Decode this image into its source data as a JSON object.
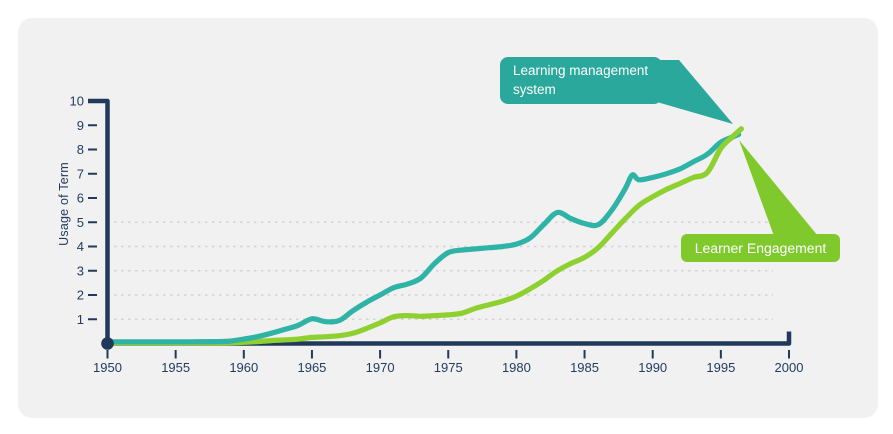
{
  "card": {
    "background": "#f1f1f2"
  },
  "colors": {
    "axis": "#21395b",
    "tick_label": "#223c60",
    "gridline": "#d2d3d6",
    "lms_line": "#2eb3a6",
    "lms_callout": "#2aa89b",
    "engagement_line": "#8ed02f",
    "engagement_callout": "#80c92d",
    "callout_text": "#ffffff"
  },
  "chart_data": {
    "type": "line",
    "title": "",
    "xlabel": "",
    "ylabel": "Usage of Term",
    "xlim": [
      1950,
      2000
    ],
    "ylim": [
      0,
      10
    ],
    "x_ticks": [
      1950,
      1955,
      1960,
      1965,
      1970,
      1975,
      1980,
      1985,
      1990,
      1995,
      2000
    ],
    "y_ticks": [
      1,
      2,
      3,
      4,
      5,
      6,
      7,
      8,
      9,
      10
    ],
    "gridlines_y": [
      1,
      2,
      3,
      4,
      5
    ],
    "grid_style": "dashed",
    "legend_position": "callout-labels-on-chart",
    "series": [
      {
        "name": "Learning management system",
        "color": "#2eb3a6",
        "points": [
          [
            1950,
            0.07
          ],
          [
            1952,
            0.07
          ],
          [
            1954,
            0.07
          ],
          [
            1956,
            0.07
          ],
          [
            1958,
            0.08
          ],
          [
            1959,
            0.1
          ],
          [
            1960,
            0.18
          ],
          [
            1961,
            0.28
          ],
          [
            1962,
            0.42
          ],
          [
            1963,
            0.58
          ],
          [
            1964,
            0.75
          ],
          [
            1965,
            1.02
          ],
          [
            1966,
            0.9
          ],
          [
            1967,
            0.95
          ],
          [
            1968,
            1.35
          ],
          [
            1969,
            1.7
          ],
          [
            1970,
            2.0
          ],
          [
            1971,
            2.3
          ],
          [
            1972,
            2.45
          ],
          [
            1973,
            2.7
          ],
          [
            1974,
            3.3
          ],
          [
            1975,
            3.75
          ],
          [
            1976,
            3.85
          ],
          [
            1977,
            3.9
          ],
          [
            1978,
            3.95
          ],
          [
            1979,
            4.0
          ],
          [
            1980,
            4.1
          ],
          [
            1981,
            4.35
          ],
          [
            1982,
            4.9
          ],
          [
            1983,
            5.4
          ],
          [
            1984,
            5.15
          ],
          [
            1985,
            4.95
          ],
          [
            1986,
            4.9
          ],
          [
            1987,
            5.5
          ],
          [
            1988,
            6.4
          ],
          [
            1988.5,
            6.95
          ],
          [
            1989,
            6.75
          ],
          [
            1990,
            6.85
          ],
          [
            1991,
            7.0
          ],
          [
            1992,
            7.2
          ],
          [
            1993,
            7.5
          ],
          [
            1994,
            7.8
          ],
          [
            1995,
            8.3
          ],
          [
            1996,
            8.55
          ],
          [
            1996.3,
            8.62
          ]
        ]
      },
      {
        "name": "Learner Engagement",
        "color": "#8ed02f",
        "points": [
          [
            1950,
            0.02
          ],
          [
            1955,
            0.02
          ],
          [
            1958,
            0.02
          ],
          [
            1960,
            0.05
          ],
          [
            1961,
            0.08
          ],
          [
            1962,
            0.12
          ],
          [
            1963,
            0.15
          ],
          [
            1964,
            0.18
          ],
          [
            1965,
            0.25
          ],
          [
            1966,
            0.28
          ],
          [
            1967,
            0.32
          ],
          [
            1968,
            0.42
          ],
          [
            1969,
            0.62
          ],
          [
            1970,
            0.85
          ],
          [
            1971,
            1.1
          ],
          [
            1972,
            1.15
          ],
          [
            1973,
            1.12
          ],
          [
            1974,
            1.15
          ],
          [
            1975,
            1.18
          ],
          [
            1976,
            1.25
          ],
          [
            1977,
            1.45
          ],
          [
            1978,
            1.6
          ],
          [
            1979,
            1.75
          ],
          [
            1980,
            1.95
          ],
          [
            1981,
            2.25
          ],
          [
            1982,
            2.6
          ],
          [
            1983,
            3.0
          ],
          [
            1984,
            3.3
          ],
          [
            1985,
            3.55
          ],
          [
            1986,
            3.95
          ],
          [
            1987,
            4.55
          ],
          [
            1988,
            5.15
          ],
          [
            1989,
            5.7
          ],
          [
            1990,
            6.05
          ],
          [
            1991,
            6.35
          ],
          [
            1992,
            6.6
          ],
          [
            1993,
            6.85
          ],
          [
            1994,
            7.05
          ],
          [
            1995,
            8.05
          ],
          [
            1995.8,
            8.5
          ],
          [
            1996.5,
            8.85
          ]
        ]
      }
    ]
  }
}
